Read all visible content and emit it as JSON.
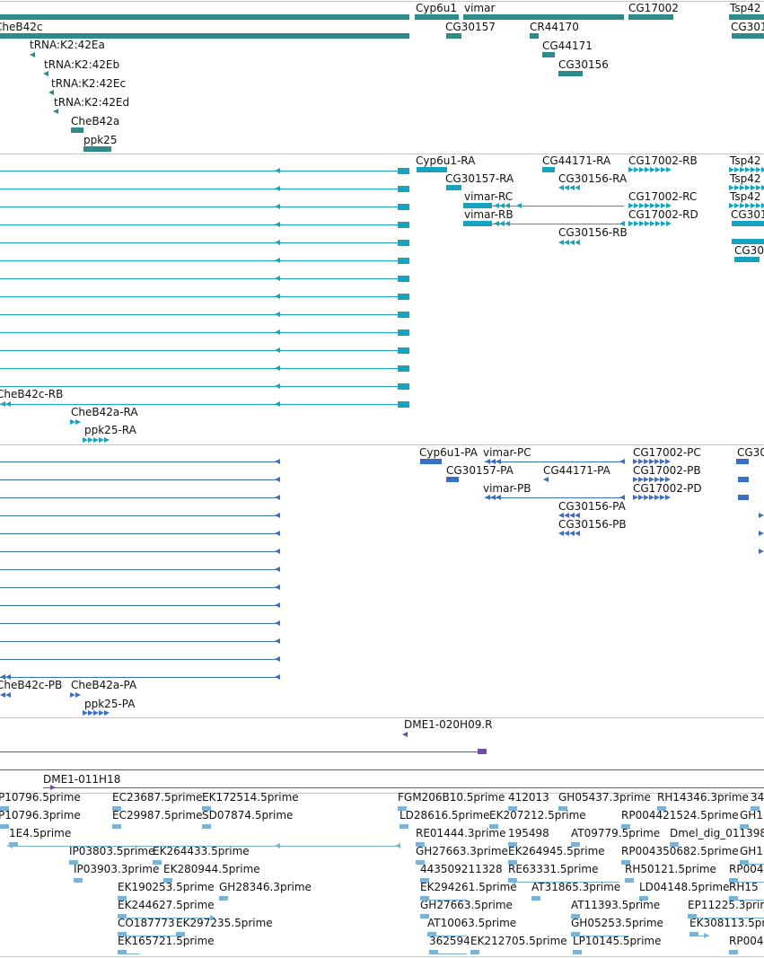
{
  "colors": {
    "gene": "#2e8b8b",
    "mrna": "#17a2c0",
    "protein": "#3a6fc9",
    "est": "#6d4fa6",
    "cdna": "#79b4d6",
    "label": "#111111",
    "divider": "#c4c4c4"
  },
  "tracks": {
    "genes": {
      "features": [
        {
          "label": "CheB42c"
        },
        {
          "label": "Cyp6u1"
        },
        {
          "label": "vimar"
        },
        {
          "label": "CG17002"
        },
        {
          "label": "Tsp42"
        },
        {
          "label": "CG30157"
        },
        {
          "label": "CR44170"
        },
        {
          "label": "CG301"
        },
        {
          "label": "tRNA:K2:42Ea"
        },
        {
          "label": "CG44171"
        },
        {
          "label": "tRNA:K2:42Eb"
        },
        {
          "label": "CG30156"
        },
        {
          "label": "tRNA:K2:42Ec"
        },
        {
          "label": "tRNA:K2:42Ed"
        },
        {
          "label": "CheB42a"
        },
        {
          "label": "ppk25"
        }
      ]
    },
    "transcripts": {
      "features": [
        {
          "label": "Cyp6u1-RA"
        },
        {
          "label": "CG44171-RA"
        },
        {
          "label": "CG17002-RB"
        },
        {
          "label": "Tsp42"
        },
        {
          "label": "CG30157-RA"
        },
        {
          "label": "CG30156-RA"
        },
        {
          "label": "Tsp42"
        },
        {
          "label": "vimar-RC"
        },
        {
          "label": "CG17002-RC"
        },
        {
          "label": "Tsp42"
        },
        {
          "label": "vimar-RB"
        },
        {
          "label": "CG17002-RD"
        },
        {
          "label": "CG301"
        },
        {
          "label": "CG30156-RB"
        },
        {
          "label": "CG30"
        },
        {
          "label": "CheB42c-RB"
        },
        {
          "label": "CheB42a-RA"
        },
        {
          "label": "ppk25-RA"
        }
      ]
    },
    "proteins": {
      "features": [
        {
          "label": "Cyp6u1-PA"
        },
        {
          "label": "vimar-PC"
        },
        {
          "label": "CG17002-PC"
        },
        {
          "label": "CG30"
        },
        {
          "label": "CG30157-PA"
        },
        {
          "label": "CG44171-PA"
        },
        {
          "label": "CG17002-PB"
        },
        {
          "label": "vimar-PB"
        },
        {
          "label": "CG17002-PD"
        },
        {
          "label": "CG30156-PA"
        },
        {
          "label": "CG30156-PB"
        },
        {
          "label": "CheB42c-PB"
        },
        {
          "label": "CheB42a-PA"
        },
        {
          "label": "ppk25-PA"
        }
      ]
    },
    "ests": {
      "features": [
        {
          "label": "DME1-020H09.R"
        },
        {
          "label": "DME1-011H18"
        }
      ]
    },
    "cdna": {
      "features": [
        {
          "label": "P10796.5prime"
        },
        {
          "label": "EC23687.5prime"
        },
        {
          "label": "EK172514.5prime"
        },
        {
          "label": "FGM206B10.5prime"
        },
        {
          "label": "412013"
        },
        {
          "label": "GH05437.3prime"
        },
        {
          "label": "RH14346.3prime"
        },
        {
          "label": "34"
        },
        {
          "label": "P10796.3prime"
        },
        {
          "label": "EC29987.5prime"
        },
        {
          "label": "SD07874.5prime"
        },
        {
          "label": "LD28616.5prime"
        },
        {
          "label": "EK207212.5prime"
        },
        {
          "label": "RP004421524.5prime"
        },
        {
          "label": "GH1"
        },
        {
          "label": "1E4.5prime"
        },
        {
          "label": "RE01444.3prime"
        },
        {
          "label": "195498"
        },
        {
          "label": "AT09779.5prime"
        },
        {
          "label": "Dmel_dig_011398"
        },
        {
          "label": "IP03803.5prime"
        },
        {
          "label": "EK264433.5prime"
        },
        {
          "label": "GH27663.3prime"
        },
        {
          "label": "EK264945.5prime"
        },
        {
          "label": "RP004350682.5prime"
        },
        {
          "label": "GH1"
        },
        {
          "label": "IP03903.3prime"
        },
        {
          "label": "EK280944.5prime"
        },
        {
          "label": "443509211328"
        },
        {
          "label": "RE63331.5prime"
        },
        {
          "label": "RH50121.5prime"
        },
        {
          "label": "RP004"
        },
        {
          "label": "EK190253.5prime"
        },
        {
          "label": "GH28346.3prime"
        },
        {
          "label": "EK294261.5prime"
        },
        {
          "label": "AT31865.3prime"
        },
        {
          "label": "LD04148.5prime"
        },
        {
          "label": "RH15"
        },
        {
          "label": "EK244627.5prime"
        },
        {
          "label": "GH27663.5prime"
        },
        {
          "label": "AT11393.5prime"
        },
        {
          "label": "EP11225.3prime"
        },
        {
          "label": "CO187773"
        },
        {
          "label": "EK297235.5prime"
        },
        {
          "label": "AT10063.5prime"
        },
        {
          "label": "GH05253.5prime"
        },
        {
          "label": "EK308113.5prime"
        },
        {
          "label": "EK165721.5prime"
        },
        {
          "label": "362594"
        },
        {
          "label": "EK212705.5prime"
        },
        {
          "label": "LP10145.5prime"
        },
        {
          "label": "RP004"
        }
      ]
    }
  }
}
